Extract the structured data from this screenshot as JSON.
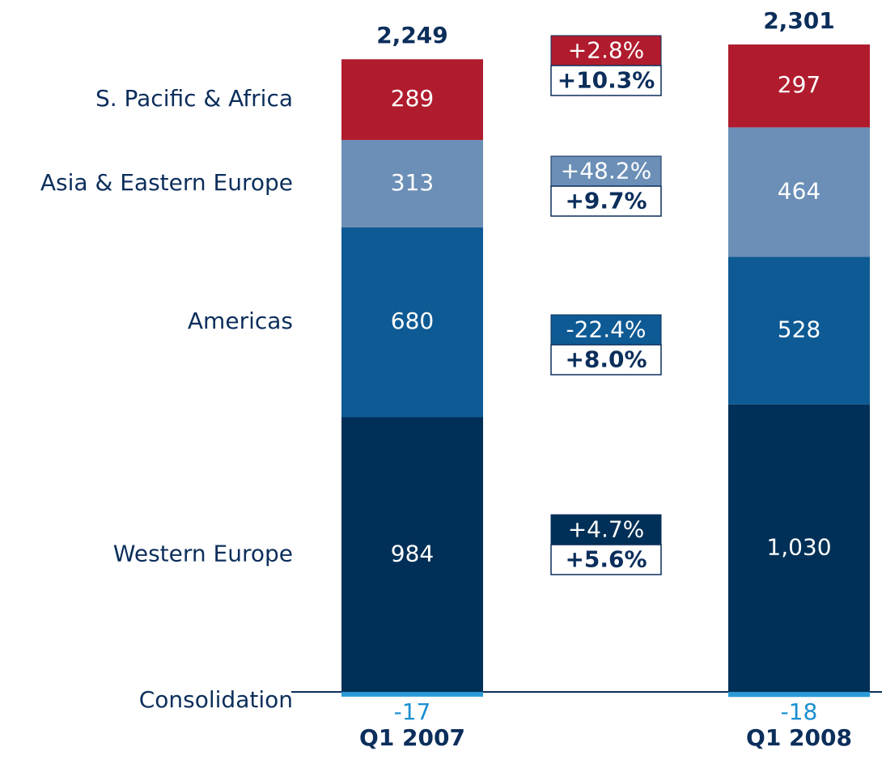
{
  "chart_data": {
    "type": "stacked_bar",
    "categories": [
      "Q1 2007",
      "Q1 2008"
    ],
    "series": [
      {
        "name": "Western Europe",
        "color": "#003057",
        "values": [
          984,
          1030
        ],
        "value_labels": [
          "984",
          "1,030"
        ],
        "change": {
          "value": 4.7,
          "label": "+4.7%"
        },
        "change_alt": {
          "value": 5.6,
          "label": "+5.6%"
        }
      },
      {
        "name": "Americas",
        "color": "#0e5a94",
        "values": [
          680,
          528
        ],
        "change": {
          "value": -22.4,
          "label": "-22.4%"
        },
        "change_alt": {
          "value": 8.0,
          "label": "+8.0%"
        }
      },
      {
        "name": "Asia & Eastern Europe",
        "color": "#6b8fb7",
        "values": [
          313,
          464
        ],
        "change": {
          "value": 48.2,
          "label": "+48.2%"
        },
        "change_alt": {
          "value": 9.7,
          "label": "+9.7%"
        }
      },
      {
        "name": "S. Pacific & Africa",
        "color": "#b01c2e",
        "values": [
          289,
          297
        ],
        "change": {
          "value": 2.8,
          "label": "+2.8%"
        },
        "change_alt": {
          "value": 10.3,
          "label": "+10.3%"
        }
      },
      {
        "name": "Consolidation",
        "color": "#2a9ad6",
        "values": [
          -17,
          -18
        ]
      }
    ],
    "totals": [
      2249,
      2301
    ],
    "total_labels": [
      "2,249",
      "2,301"
    ]
  }
}
